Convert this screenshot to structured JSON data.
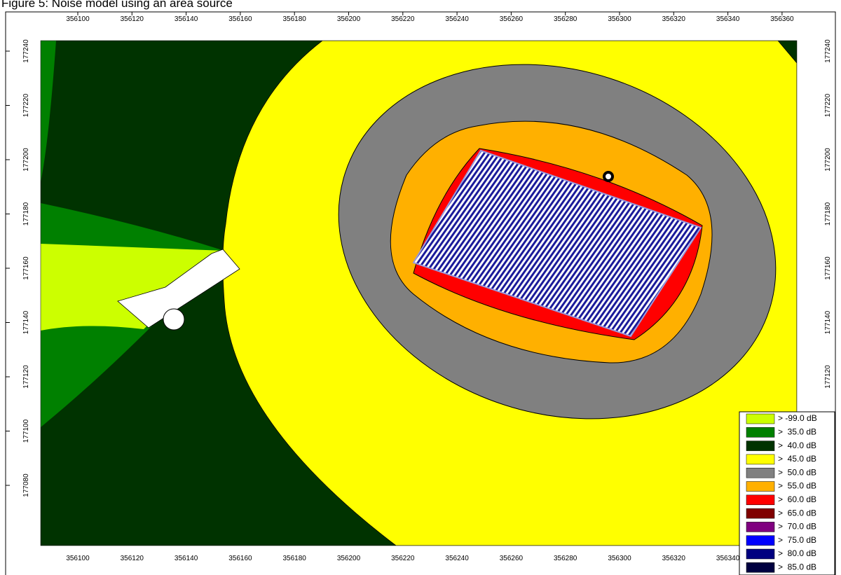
{
  "title": "Figure 5: Noise model using an area source",
  "x_axis": {
    "ticks": [
      "356100",
      "356120",
      "356140",
      "356160",
      "356180",
      "356200",
      "356220",
      "356240",
      "356260",
      "356280",
      "356300",
      "356320",
      "356340",
      "356360"
    ]
  },
  "y_axis": {
    "ticks": [
      "177240",
      "177220",
      "177200",
      "177180",
      "177160",
      "177140",
      "177120",
      "177100",
      "177080"
    ]
  },
  "legend": [
    {
      "label": "> -99.0 dB",
      "color": "#ccff00"
    },
    {
      "label": ">  35.0 dB",
      "color": "#008000"
    },
    {
      "label": ">  40.0 dB",
      "color": "#003300"
    },
    {
      "label": ">  45.0 dB",
      "color": "#ffff00"
    },
    {
      "label": ">  50.0 dB",
      "color": "#808080"
    },
    {
      "label": ">  55.0 dB",
      "color": "#ffb000"
    },
    {
      "label": ">  60.0 dB",
      "color": "#ff0000"
    },
    {
      "label": ">  65.0 dB",
      "color": "#800000"
    },
    {
      "label": ">  70.0 dB",
      "color": "#800080"
    },
    {
      "label": ">  75.0 dB",
      "color": "#0000ff"
    },
    {
      "label": ">  80.0 dB",
      "color": "#000080"
    },
    {
      "label": ">  85.0 dB",
      "color": "#000040"
    }
  ]
}
